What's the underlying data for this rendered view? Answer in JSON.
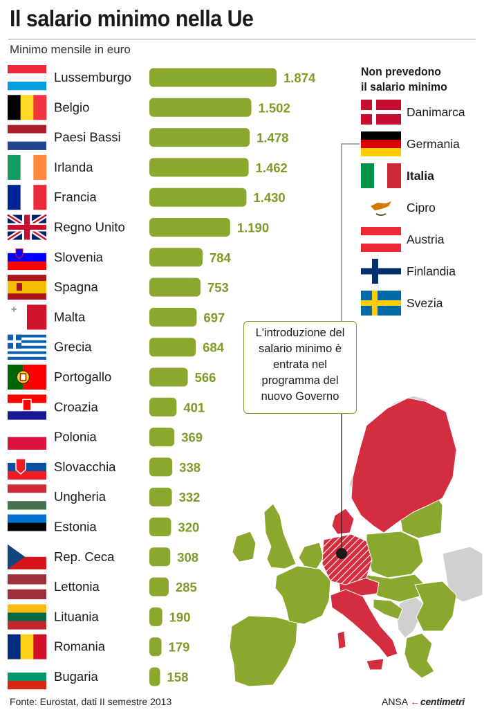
{
  "title": "Il salario minimo nella Ue",
  "subtitle": "Minimo mensile in euro",
  "source": "Fonte: Eurostat, dati II semestre 2013",
  "credit": {
    "agency": "ANSA",
    "brand": "centimetri"
  },
  "colors": {
    "bar": "#8ba82e",
    "value_text": "#7d9b26",
    "no_min_wage": "#d42d3f",
    "map_other": "#8ba82e",
    "non_eu": "#d0d0d0",
    "sea": "#ffffff"
  },
  "chart_data": {
    "type": "bar",
    "orientation": "horizontal",
    "title": "Il salario minimo nella Ue",
    "subtitle": "Minimo mensile in euro",
    "categories": [
      "Lussemburgo",
      "Belgio",
      "Paesi Bassi",
      "Irlanda",
      "Francia",
      "Regno Unito",
      "Slovenia",
      "Spagna",
      "Malta",
      "Grecia",
      "Portogallo",
      "Croazia",
      "Polonia",
      "Slovacchia",
      "Ungheria",
      "Estonia",
      "Rep. Ceca",
      "Lettonia",
      "Lituania",
      "Romania",
      "Bugaria"
    ],
    "values": [
      1874,
      1502,
      1478,
      1462,
      1430,
      1190,
      784,
      753,
      697,
      684,
      566,
      401,
      369,
      338,
      332,
      320,
      308,
      285,
      190,
      179,
      158
    ],
    "value_labels": [
      "1.874",
      "1.502",
      "1.478",
      "1.462",
      "1.430",
      "1.190",
      "784",
      "753",
      "697",
      "684",
      "566",
      "401",
      "369",
      "338",
      "332",
      "320",
      "308",
      "285",
      "190",
      "179",
      "158"
    ],
    "xlim": [
      0,
      1874
    ],
    "grid": false,
    "legend": "none"
  },
  "flags": [
    {
      "type": "h",
      "stripes": [
        "#ed2939",
        "#ffffff",
        "#00a1de"
      ]
    },
    {
      "type": "v",
      "stripes": [
        "#000000",
        "#fdda24",
        "#ef3340"
      ]
    },
    {
      "type": "h",
      "stripes": [
        "#ae1c28",
        "#ffffff",
        "#21468b"
      ]
    },
    {
      "type": "v",
      "stripes": [
        "#169b62",
        "#ffffff",
        "#ff883e"
      ]
    },
    {
      "type": "v",
      "stripes": [
        "#002395",
        "#ffffff",
        "#ed2939"
      ]
    },
    {
      "type": "uk"
    },
    {
      "type": "h",
      "stripes": [
        "#ffffff",
        "#0000ff",
        "#ff0000"
      ],
      "emblem": "slovenia-coat-icon"
    },
    {
      "type": "spain",
      "emblem": "spain-coat-icon"
    },
    {
      "type": "v2",
      "stripes": [
        "#ffffff",
        "#cf142b"
      ],
      "emblem": "george-cross-icon"
    },
    {
      "type": "greece"
    },
    {
      "type": "portugal",
      "emblem": "portugal-sphere-icon"
    },
    {
      "type": "h",
      "stripes": [
        "#ff0000",
        "#ffffff",
        "#171796"
      ],
      "emblem": "croatia-checker-icon"
    },
    {
      "type": "h2",
      "stripes": [
        "#ffffff",
        "#dc143c"
      ]
    },
    {
      "type": "h",
      "stripes": [
        "#ffffff",
        "#0b4ea2",
        "#ee1c25"
      ],
      "emblem": "slovakia-coat-icon"
    },
    {
      "type": "h",
      "stripes": [
        "#ce2939",
        "#ffffff",
        "#477050"
      ]
    },
    {
      "type": "h",
      "stripes": [
        "#0072ce",
        "#000000",
        "#ffffff"
      ]
    },
    {
      "type": "czech"
    },
    {
      "type": "latvia"
    },
    {
      "type": "h",
      "stripes": [
        "#fdb913",
        "#006a44",
        "#c1272d"
      ]
    },
    {
      "type": "v",
      "stripes": [
        "#002b7f",
        "#fcd116",
        "#ce1126"
      ]
    },
    {
      "type": "h",
      "stripes": [
        "#ffffff",
        "#00966e",
        "#d62612"
      ]
    }
  ],
  "no_min_wage": {
    "title_lines": [
      "Non prevedono",
      "il salario minimo"
    ],
    "countries": [
      {
        "name": "Danimarca",
        "flag": "denmark",
        "bold": false
      },
      {
        "name": "Germania",
        "flag": "germany",
        "bold": false
      },
      {
        "name": "Italia",
        "flag": "italy",
        "bold": true
      },
      {
        "name": "Cipro",
        "flag": "cyprus",
        "bold": false
      },
      {
        "name": "Austria",
        "flag": "austria",
        "bold": false
      },
      {
        "name": "Finlandia",
        "flag": "finland",
        "bold": false
      },
      {
        "name": "Svezia",
        "flag": "sweden",
        "bold": false
      }
    ]
  },
  "callout_lines": [
    "L'introduzione del",
    "salario minimo è",
    "entrata nel",
    "programma del",
    "nuovo Governo"
  ]
}
